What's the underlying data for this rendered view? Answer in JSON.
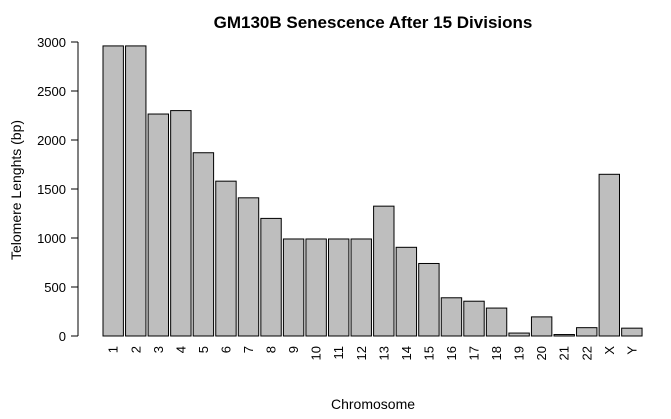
{
  "chart_data": {
    "type": "bar",
    "title": "GM130B Senescence After  15  Divisions",
    "xlabel": "Chromosome",
    "ylabel": "Telomere Lenghts (bp)",
    "categories": [
      "1",
      "2",
      "3",
      "4",
      "5",
      "6",
      "7",
      "8",
      "9",
      "10",
      "11",
      "12",
      "13",
      "14",
      "15",
      "16",
      "17",
      "18",
      "19",
      "20",
      "21",
      "22",
      "X",
      "Y"
    ],
    "values": [
      2960,
      2960,
      2265,
      2300,
      1870,
      1580,
      1410,
      1200,
      990,
      990,
      990,
      990,
      1325,
      905,
      740,
      390,
      355,
      285,
      30,
      195,
      15,
      85,
      1650,
      80
    ],
    "yticks": [
      0,
      500,
      1000,
      1500,
      2000,
      2500,
      3000
    ],
    "ylim": [
      0,
      3000
    ],
    "bar_color": "#bebebe",
    "grid": false,
    "legend": "none"
  }
}
